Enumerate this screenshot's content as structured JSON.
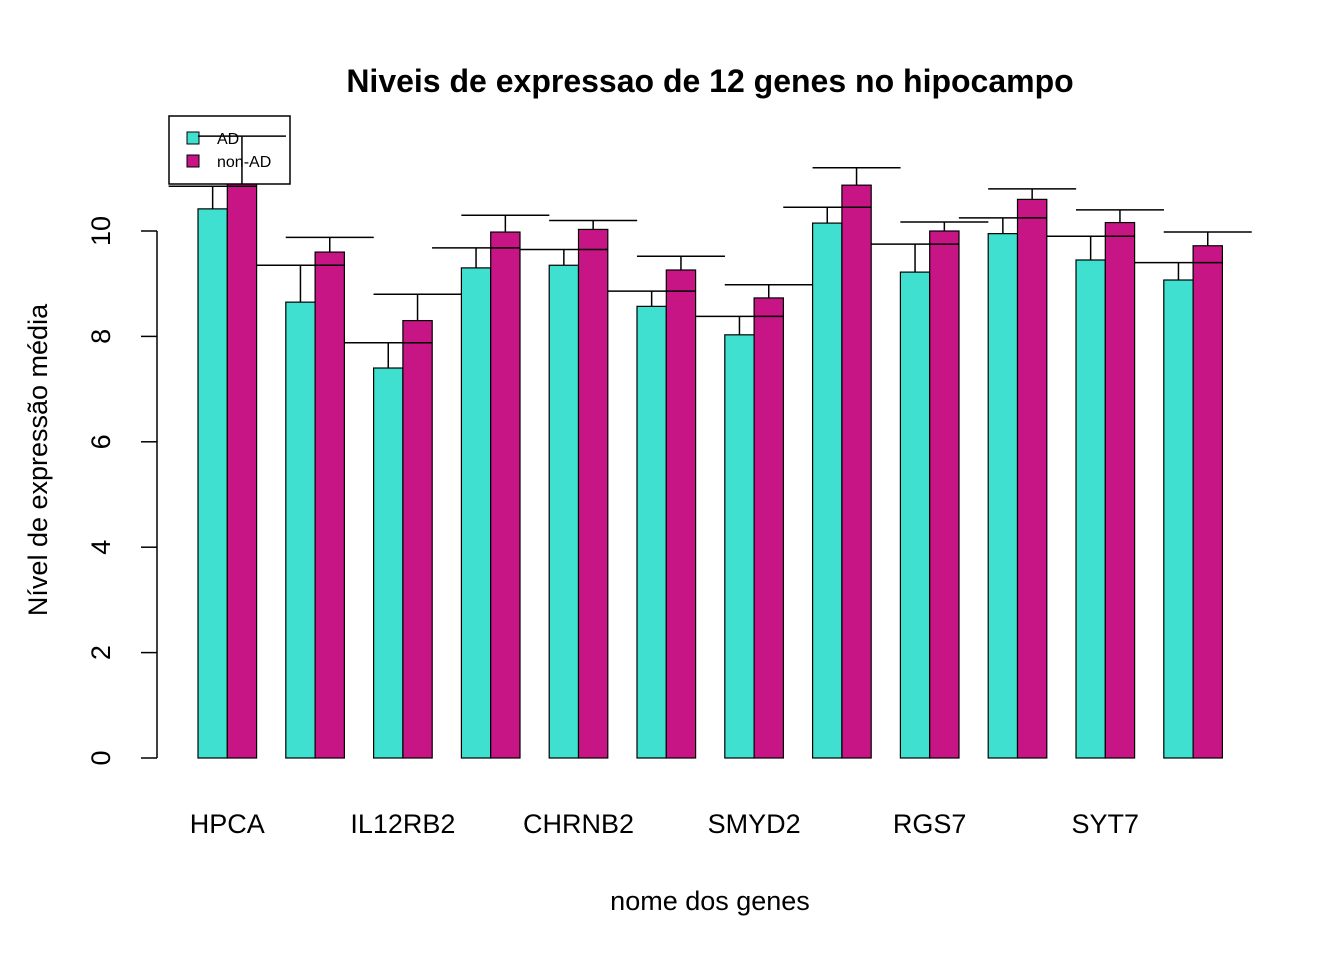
{
  "chart_data": {
    "type": "bar",
    "title": "Niveis de expressao de 12 genes no hipocampo",
    "xlabel": "nome dos genes",
    "ylabel": "Nível de expressão média",
    "ylim": [
      0,
      10.8
    ],
    "yticks": [
      0,
      2,
      4,
      6,
      8,
      10
    ],
    "categories": [
      "HPCA",
      "",
      "IL12RB2",
      "",
      "CHRNB2",
      "",
      "SMYD2",
      "",
      "RGS7",
      "",
      "SYT7",
      ""
    ],
    "series": [
      {
        "name": "AD",
        "color": "#40E0D0",
        "values": [
          10.42,
          8.65,
          7.4,
          9.3,
          9.35,
          8.57,
          8.03,
          10.15,
          9.22,
          9.95,
          9.45,
          9.07
        ],
        "error_upper": [
          10.85,
          9.35,
          7.88,
          9.68,
          9.65,
          8.86,
          8.38,
          10.45,
          9.75,
          10.25,
          9.9,
          9.4
        ]
      },
      {
        "name": "non-AD",
        "color": "#C71585",
        "values": [
          10.95,
          9.6,
          8.3,
          9.98,
          10.03,
          9.26,
          8.73,
          10.87,
          10.0,
          10.6,
          10.16,
          9.72
        ],
        "error_upper": [
          11.8,
          9.88,
          8.8,
          10.3,
          10.2,
          9.52,
          8.98,
          11.2,
          10.17,
          10.8,
          10.4,
          9.98
        ]
      }
    ],
    "legend": {
      "position": "top-left",
      "entries": [
        "AD",
        "non-AD"
      ]
    }
  }
}
